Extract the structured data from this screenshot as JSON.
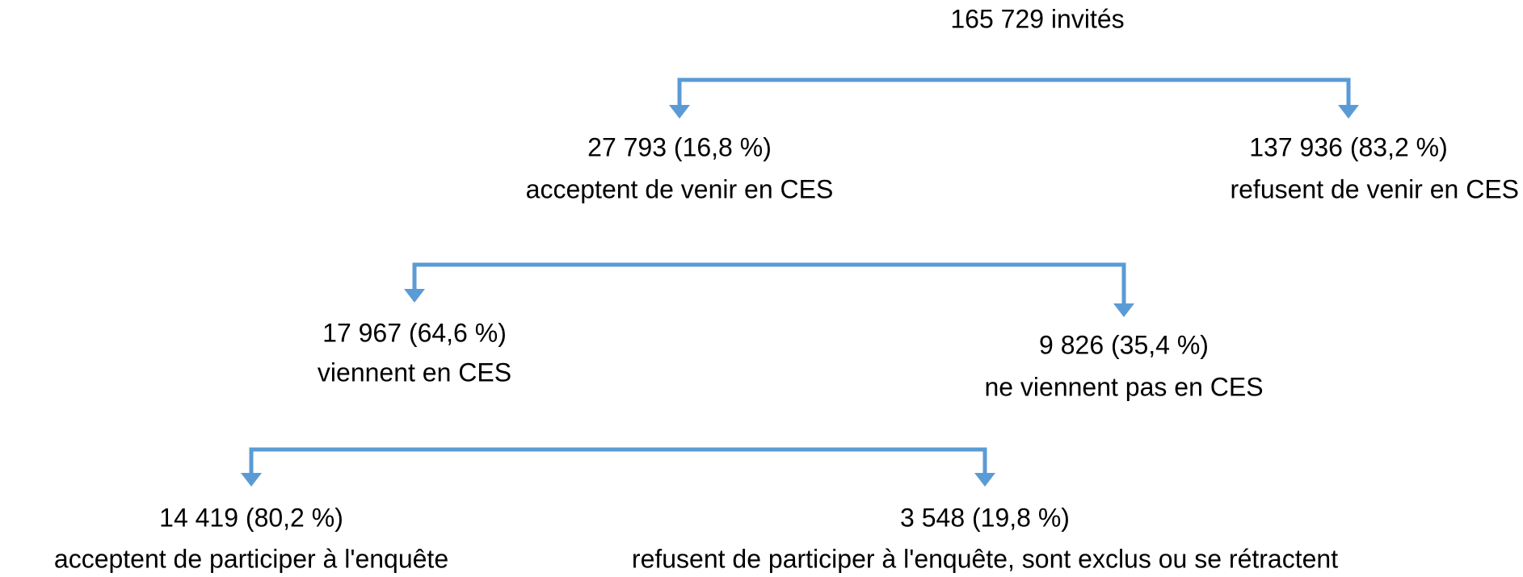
{
  "root": {
    "label": "165 729 invités"
  },
  "nodes": [
    {
      "line1": "27 793 (16,8 %)",
      "line2": "acceptent de venir en CES"
    },
    {
      "line1": "137 936 (83,2 %)",
      "line2": "refusent de venir en CES"
    },
    {
      "line1": "17 967 (64,6 %)",
      "line2": "viennent en CES"
    },
    {
      "line1": "9 826 (35,4 %)",
      "line2": "ne viennent pas en CES"
    },
    {
      "line1": "14 419 (80,2 %)",
      "line2": "acceptent de participer à l'enquête"
    },
    {
      "line1": "3 548 (19,8 %)",
      "line2": "refusent de participer à l'enquête, sont exclus ou se rétractent"
    }
  ]
}
